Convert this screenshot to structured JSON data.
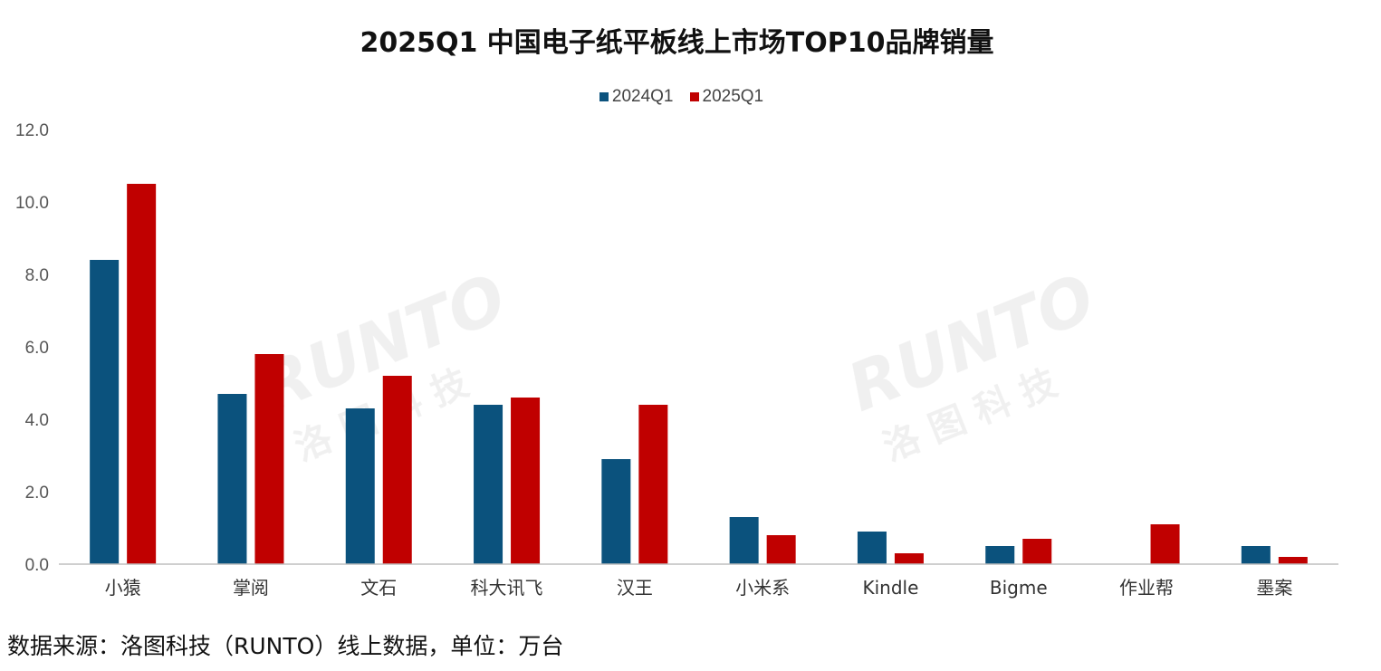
{
  "title": "2025Q1 中国电子纸平板线上市场TOP10品牌销量",
  "source_note": "数据来源：洛图科技（RUNTO）线上数据，单位：万台",
  "watermark": {
    "text_en": "RUNTO",
    "text_cn": "洛图科技"
  },
  "colors": {
    "series_2024": "#0b527d",
    "series_2025": "#c00000",
    "axis": "#bfbfbf",
    "tick_text": "#555555"
  },
  "chart_data": {
    "type": "bar",
    "title": "2025Q1 中国电子纸平板线上市场TOP10品牌销量",
    "categories": [
      "小猿",
      "掌阅",
      "文石",
      "科大讯飞",
      "汉王",
      "小米系",
      "Kindle",
      "Bigme",
      "作业帮",
      "墨案"
    ],
    "series": [
      {
        "name": "2024Q1",
        "values": [
          8.4,
          4.7,
          4.3,
          4.4,
          2.9,
          1.3,
          0.9,
          0.5,
          0.0,
          0.5
        ]
      },
      {
        "name": "2025Q1",
        "values": [
          10.5,
          5.8,
          5.2,
          4.6,
          4.4,
          0.8,
          0.3,
          0.7,
          1.1,
          0.2
        ]
      }
    ],
    "yticks": [
      "0.0",
      "2.0",
      "4.0",
      "6.0",
      "8.0",
      "10.0",
      "12.0"
    ],
    "ylim": [
      0,
      12
    ],
    "xlabel": "",
    "ylabel": "",
    "legend_position": "top-center",
    "grid": false
  }
}
